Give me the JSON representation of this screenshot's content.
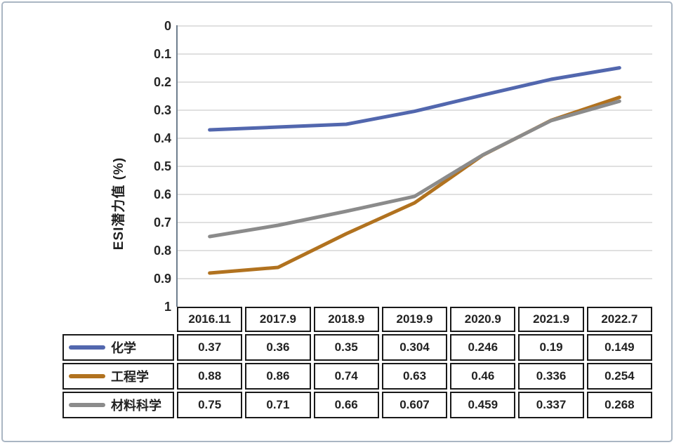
{
  "chart_data": {
    "type": "line",
    "title": "",
    "xlabel": "",
    "ylabel": "ESI潜力值 (%)",
    "categories": [
      "2016.11",
      "2017.9",
      "2018.9",
      "2019.9",
      "2020.9",
      "2021.9",
      "2022.7"
    ],
    "series": [
      {
        "name": "化学",
        "color": "#5267ae",
        "values": [
          0.37,
          0.36,
          0.35,
          0.304,
          0.246,
          0.19,
          0.149
        ]
      },
      {
        "name": "工程学",
        "color": "#b1721f",
        "values": [
          0.88,
          0.86,
          0.74,
          0.63,
          0.46,
          0.336,
          0.254
        ]
      },
      {
        "name": "材料科学",
        "color": "#8b8b8b",
        "values": [
          0.75,
          0.71,
          0.66,
          0.607,
          0.459,
          0.337,
          0.268
        ]
      }
    ],
    "y_axis": {
      "min": 0,
      "max": 1,
      "step": 0.1,
      "inverted": true,
      "tick_labels": [
        "0",
        "0.1",
        "0.2",
        "0.3",
        "0.4",
        "0.5",
        "0.6",
        "0.7",
        "0.8",
        "0.9",
        "1"
      ]
    },
    "grid": true,
    "legend_position": "data-table-left",
    "show_data_table": true
  },
  "colors": {
    "gridline": "#d6d6d6",
    "axis_line": "#6e7e8e",
    "outer_border": "#aab6c3",
    "table_border": "#191919",
    "text": "#262626"
  }
}
